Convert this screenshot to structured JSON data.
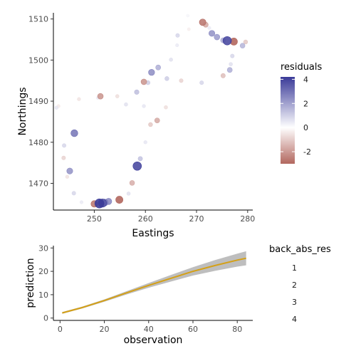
{
  "chart_data": [
    {
      "type": "scatter",
      "xlabel": "Eastings",
      "ylabel": "Northings",
      "xlim": [
        242,
        281
      ],
      "ylim": [
        1463.5,
        1511.5
      ],
      "xticks": [
        250,
        260,
        270,
        280
      ],
      "yticks": [
        1470,
        1480,
        1490,
        1500,
        1510
      ],
      "legend": {
        "title": "residuals",
        "placement": "right",
        "ticks": [
          4,
          2,
          0,
          -2
        ],
        "range": [
          -3,
          4.2
        ],
        "colors": {
          "low": "#b2675e",
          "mid": "#ffffff",
          "high": "#3a3a98"
        }
      },
      "points": [
        {
          "x": 271.2,
          "y": 1509.2,
          "r": -2.6
        },
        {
          "x": 271.8,
          "y": 1508.6,
          "r": -1.6
        },
        {
          "x": 276.0,
          "y": 1504.7,
          "r": 3.8
        },
        {
          "x": 277.3,
          "y": 1504.5,
          "r": -3.0
        },
        {
          "x": 275.2,
          "y": 1504.8,
          "r": 1.6
        },
        {
          "x": 273.0,
          "y": 1506.5,
          "r": 2.2
        },
        {
          "x": 274.0,
          "y": 1505.6,
          "r": 2.0
        },
        {
          "x": 279.0,
          "y": 1503.5,
          "r": 1.5
        },
        {
          "x": 279.6,
          "y": 1504.4,
          "r": -1.0
        },
        {
          "x": 277.0,
          "y": 1501.0,
          "r": 0.8
        },
        {
          "x": 276.5,
          "y": 1497.6,
          "r": 1.6
        },
        {
          "x": 275.2,
          "y": 1496.2,
          "r": -1.2
        },
        {
          "x": 276.7,
          "y": 1499.0,
          "r": 0.6
        },
        {
          "x": 271.0,
          "y": 1494.5,
          "r": 0.8
        },
        {
          "x": 267.0,
          "y": 1495.0,
          "r": -0.8
        },
        {
          "x": 264.2,
          "y": 1495.5,
          "r": 1.0
        },
        {
          "x": 258.3,
          "y": 1492.2,
          "r": 1.3
        },
        {
          "x": 261.2,
          "y": 1497.0,
          "r": 2.3
        },
        {
          "x": 262.5,
          "y": 1498.2,
          "r": 1.6
        },
        {
          "x": 265.0,
          "y": 1500.1,
          "r": 0.6
        },
        {
          "x": 266.2,
          "y": 1503.6,
          "r": 0.4
        },
        {
          "x": 266.3,
          "y": 1506.0,
          "r": 0.8
        },
        {
          "x": 268.3,
          "y": 1510.8,
          "r": 0.2
        },
        {
          "x": 259.7,
          "y": 1494.7,
          "r": -2.0
        },
        {
          "x": 260.5,
          "y": 1494.5,
          "r": 1.0
        },
        {
          "x": 254.5,
          "y": 1491.2,
          "r": -0.6
        },
        {
          "x": 251.2,
          "y": 1491.2,
          "r": -2.0
        },
        {
          "x": 250.7,
          "y": 1490.8,
          "r": 0.4
        },
        {
          "x": 247.0,
          "y": 1490.5,
          "r": -0.5
        },
        {
          "x": 243.0,
          "y": 1488.8,
          "r": -0.4
        },
        {
          "x": 242.6,
          "y": 1488.4,
          "r": 0.5
        },
        {
          "x": 246.1,
          "y": 1482.2,
          "r": 2.8
        },
        {
          "x": 244.1,
          "y": 1479.2,
          "r": 0.8
        },
        {
          "x": 244.0,
          "y": 1476.2,
          "r": -0.8
        },
        {
          "x": 245.2,
          "y": 1473.0,
          "r": 2.2
        },
        {
          "x": 244.7,
          "y": 1471.6,
          "r": -0.5
        },
        {
          "x": 246.0,
          "y": 1467.6,
          "r": 0.8
        },
        {
          "x": 247.5,
          "y": 1465.4,
          "r": 0.4
        },
        {
          "x": 250.0,
          "y": 1465.0,
          "r": -2.6
        },
        {
          "x": 251.0,
          "y": 1465.1,
          "r": 4.2
        },
        {
          "x": 251.6,
          "y": 1465.2,
          "r": 3.6
        },
        {
          "x": 252.0,
          "y": 1465.3,
          "r": 2.8
        },
        {
          "x": 252.8,
          "y": 1465.6,
          "r": 2.4
        },
        {
          "x": 254.9,
          "y": 1466.0,
          "r": -3.0
        },
        {
          "x": 256.7,
          "y": 1467.5,
          "r": 0.6
        },
        {
          "x": 257.4,
          "y": 1470.1,
          "r": -1.5
        },
        {
          "x": 258.4,
          "y": 1474.2,
          "r": 3.8
        },
        {
          "x": 259.0,
          "y": 1476.0,
          "r": 1.2
        },
        {
          "x": 260.0,
          "y": 1480.0,
          "r": 0.5
        },
        {
          "x": 261.0,
          "y": 1484.3,
          "r": -1.0
        },
        {
          "x": 262.3,
          "y": 1485.3,
          "r": -1.6
        },
        {
          "x": 264.0,
          "y": 1488.5,
          "r": -0.6
        },
        {
          "x": 256.2,
          "y": 1489.2,
          "r": 0.6
        },
        {
          "x": 259.7,
          "y": 1488.8,
          "r": 0.5
        },
        {
          "x": 268.5,
          "y": 1507.5,
          "r": -0.3
        },
        {
          "x": 272.5,
          "y": 1507.8,
          "r": 0.4
        }
      ]
    },
    {
      "type": "line",
      "xlabel": "observation",
      "ylabel": "prediction",
      "xlim": [
        -3,
        87
      ],
      "ylim": [
        -1,
        31
      ],
      "xticks": [
        0,
        20,
        40,
        60,
        80
      ],
      "yticks": [
        0,
        10,
        20,
        30
      ],
      "line_color": "#d4a017",
      "band_color": "#b3b3b3",
      "x": [
        1,
        10,
        20,
        30,
        40,
        50,
        60,
        70,
        80,
        84
      ],
      "y": [
        2.2,
        4.5,
        7.5,
        10.8,
        14.0,
        17.0,
        20.0,
        22.5,
        24.8,
        25.6
      ],
      "band": {
        "lower": [
          1.8,
          4.1,
          7.0,
          10.1,
          13.0,
          15.6,
          18.2,
          20.2,
          22.0,
          22.6
        ],
        "upper": [
          2.6,
          4.9,
          8.0,
          11.5,
          15.0,
          18.4,
          21.8,
          24.8,
          27.6,
          28.6
        ]
      },
      "legend": {
        "title": "back_abs_res",
        "placement": "right",
        "entries": [
          "1",
          "2",
          "3",
          "4"
        ]
      }
    }
  ]
}
